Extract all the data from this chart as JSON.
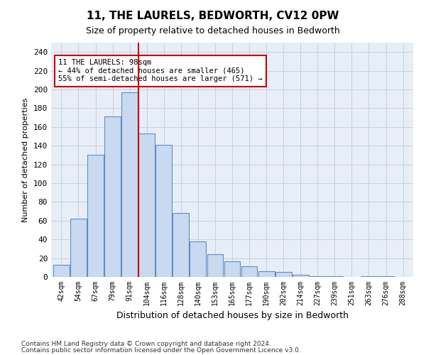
{
  "title": "11, THE LAURELS, BEDWORTH, CV12 0PW",
  "subtitle": "Size of property relative to detached houses in Bedworth",
  "xlabel": "Distribution of detached houses by size in Bedworth",
  "ylabel": "Number of detached properties",
  "bar_labels": [
    "42sqm",
    "54sqm",
    "67sqm",
    "79sqm",
    "91sqm",
    "104sqm",
    "116sqm",
    "128sqm",
    "140sqm",
    "153sqm",
    "165sqm",
    "177sqm",
    "190sqm",
    "202sqm",
    "214sqm",
    "227sqm",
    "239sqm",
    "251sqm",
    "263sqm",
    "276sqm",
    "288sqm"
  ],
  "bar_heights": [
    13,
    62,
    130,
    171,
    197,
    153,
    141,
    68,
    38,
    24,
    17,
    11,
    6,
    5,
    2,
    1,
    1,
    0,
    1,
    1,
    0
  ],
  "property_name": "11 THE LAURELS: 98sqm",
  "annotation_line1": "11 THE LAURELS: 98sqm",
  "annotation_line2": "← 44% of detached houses are smaller (465)",
  "annotation_line3": "55% of semi-detached houses are larger (571) →",
  "vline_x": 4.5,
  "bar_color": "#c9d9f0",
  "bar_edge_color": "#5a8fc4",
  "vline_color": "#cc0000",
  "annotation_box_edge": "#cc0000",
  "background_color": "#ffffff",
  "axes_facecolor": "#e8eef8",
  "grid_color": "#c8d0e0",
  "ylim": [
    0,
    250
  ],
  "yticks": [
    0,
    20,
    40,
    60,
    80,
    100,
    120,
    140,
    160,
    180,
    200,
    220,
    240
  ],
  "footer_line1": "Contains HM Land Registry data © Crown copyright and database right 2024.",
  "footer_line2": "Contains public sector information licensed under the Open Government Licence v3.0."
}
